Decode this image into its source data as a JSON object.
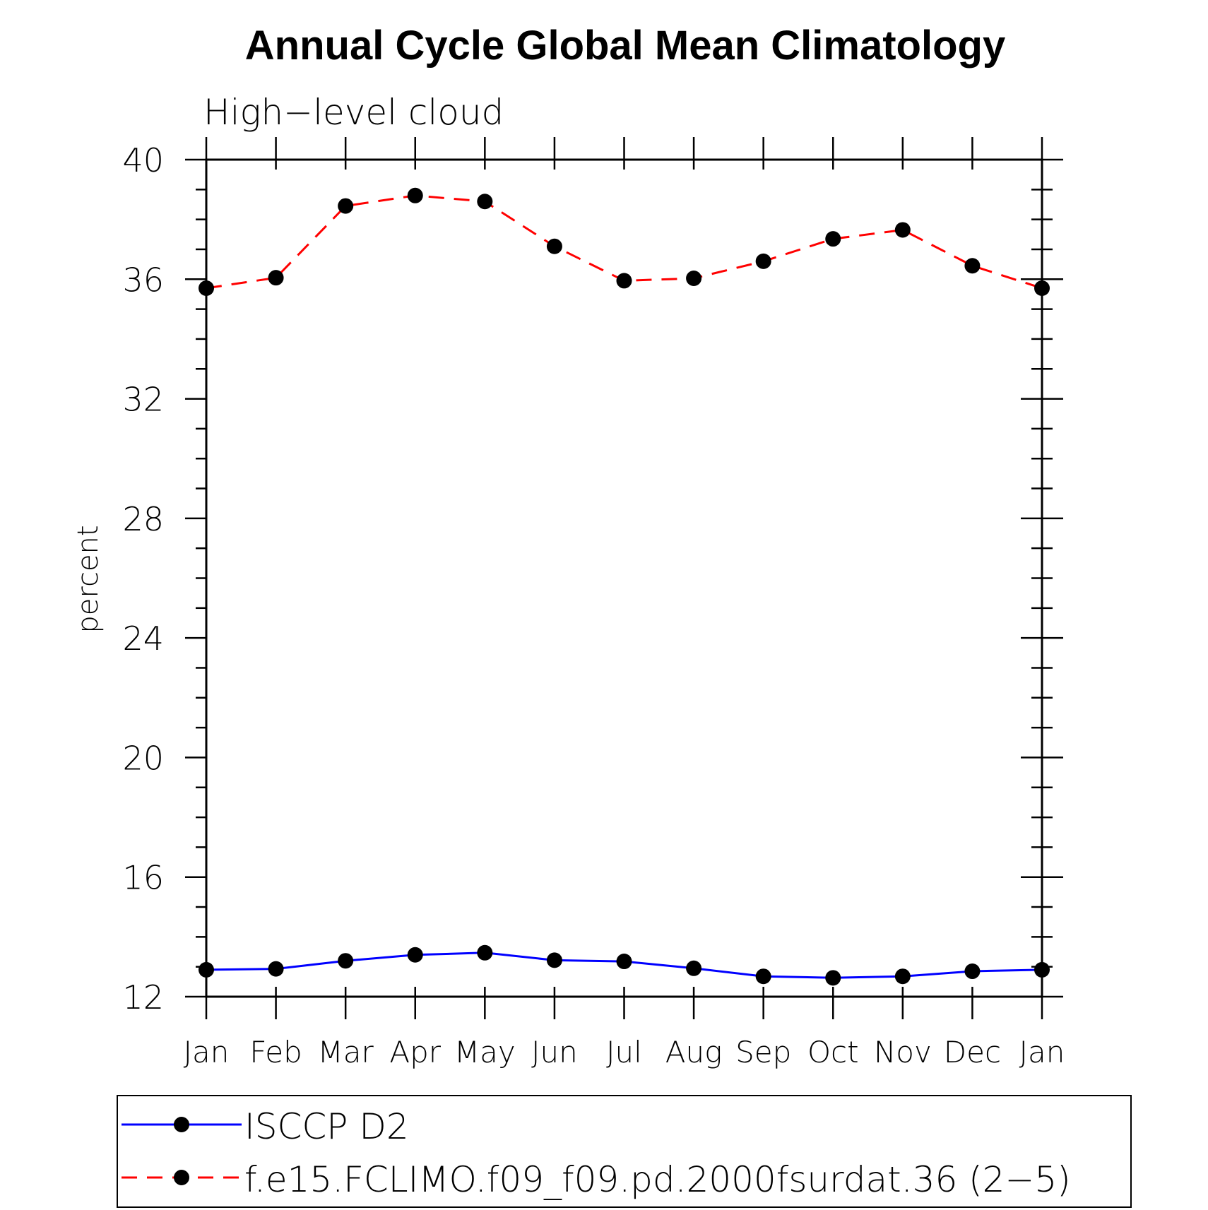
{
  "chart_data": {
    "type": "line",
    "title": "Annual Cycle Global Mean Climatology",
    "subtitle": "High−level cloud",
    "xlabel": "",
    "ylabel": "percent",
    "categories": [
      "Jan",
      "Feb",
      "Mar",
      "Apr",
      "May",
      "Jun",
      "Jul",
      "Aug",
      "Sep",
      "Oct",
      "Nov",
      "Dec",
      "Jan"
    ],
    "ylim": [
      12,
      40
    ],
    "yticks": [
      "12",
      "16",
      "20",
      "24",
      "28",
      "32",
      "36",
      "40"
    ],
    "grid": false,
    "legend_position": "bottom",
    "series": [
      {
        "name": "ISCCP D2",
        "color": "#0000ff",
        "line_style": "solid",
        "marker": "filled-circle",
        "values": [
          12.9,
          12.93,
          13.2,
          13.4,
          13.47,
          13.22,
          13.18,
          12.95,
          12.68,
          12.63,
          12.68,
          12.85,
          12.9
        ]
      },
      {
        "name": "f.e15.FCLIMO.f09_f09.pd.2000fsurdat.36 (2−5)",
        "color": "#ff0000",
        "line_style": "dashed",
        "marker": "filled-circle",
        "values": [
          35.7,
          36.05,
          38.45,
          38.8,
          38.6,
          37.1,
          35.95,
          36.03,
          36.6,
          37.35,
          37.65,
          36.45,
          35.7
        ]
      }
    ]
  }
}
